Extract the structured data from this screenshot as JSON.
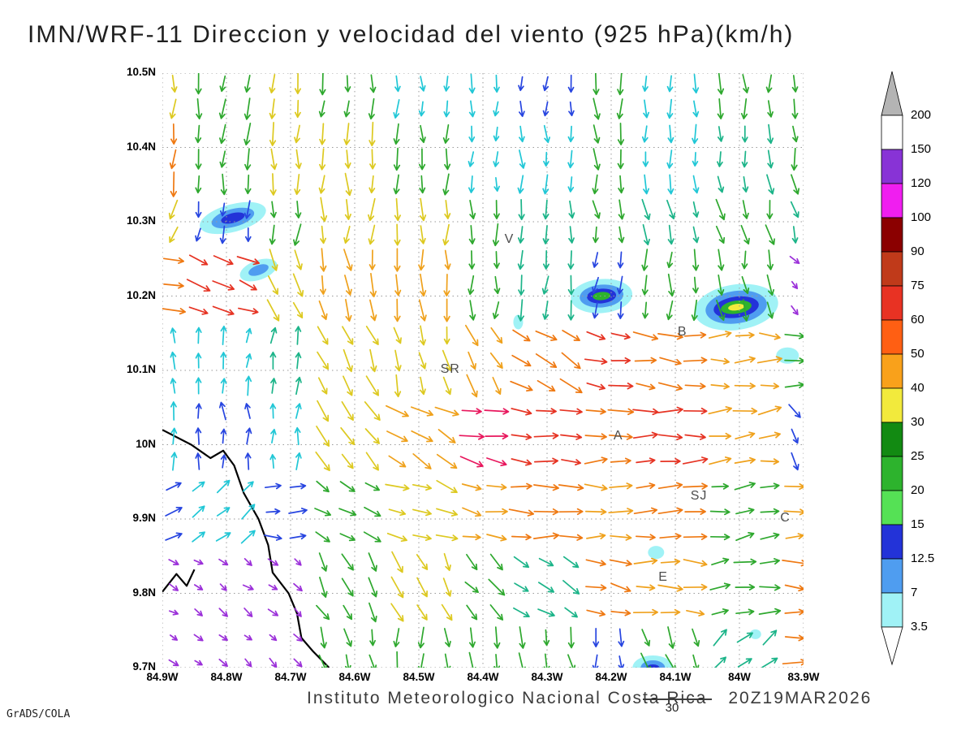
{
  "title": "IMN/WRF-11 Direccion y velocidad del viento (925 hPa)(km/h)",
  "credit": "GrADS/COLA",
  "footer": {
    "text": "Instituto Meteorologico Nacional Costa Rica",
    "timestamp": "20Z19MAR2026"
  },
  "reference_vector": {
    "label": "30"
  },
  "chart_data": {
    "type": "vector_field",
    "model": "IMN/WRF-11",
    "variable": "Direccion y velocidad del viento",
    "pressure_level": "925 hPa",
    "units": "km/h",
    "x_axis": {
      "ticks": [
        "84.9W",
        "84.8W",
        "84.7W",
        "84.6W",
        "84.5W",
        "84.4W",
        "84.3W",
        "84.2W",
        "84.1W",
        "84W",
        "83.9W"
      ],
      "lon_range": [
        84.9,
        83.9
      ]
    },
    "y_axis": {
      "ticks": [
        "10.5N",
        "10.4N",
        "10.3N",
        "10.2N",
        "10.1N",
        "10N",
        "9.9N",
        "9.8N",
        "9.7N"
      ],
      "lat_range": [
        10.5,
        9.7
      ]
    },
    "grid": true,
    "colorbar": {
      "position": "right",
      "top_label": "200",
      "above_color": "#b4b4b4",
      "below_color": "#ffffff",
      "segments": [
        {
          "hex": "#ffffff",
          "label": "150"
        },
        {
          "hex": "#8833d6",
          "label": "120"
        },
        {
          "hex": "#f01ef0",
          "label": "100"
        },
        {
          "hex": "#8b0000",
          "label": "90"
        },
        {
          "hex": "#c03a1a",
          "label": "75"
        },
        {
          "hex": "#e83223",
          "label": "60"
        },
        {
          "hex": "#ff5f13",
          "label": "50"
        },
        {
          "hex": "#f9a11b",
          "label": "40"
        },
        {
          "hex": "#f2ea3c",
          "label": "30"
        },
        {
          "hex": "#128a12",
          "label": "25"
        },
        {
          "hex": "#2db32d",
          "label": "20"
        },
        {
          "hex": "#55e155",
          "label": "15"
        },
        {
          "hex": "#2333d8",
          "label": "12.5"
        },
        {
          "hex": "#4f9df0",
          "label": "7"
        },
        {
          "hex": "#a0f2f6",
          "label": "3.5"
        }
      ]
    },
    "stations": [
      {
        "label": "V",
        "lon": 84.36,
        "lat": 10.275
      },
      {
        "label": "B",
        "lon": 84.09,
        "lat": 10.15
      },
      {
        "label": "SR",
        "lon": 84.46,
        "lat": 10.1
      },
      {
        "label": "A",
        "lon": 84.19,
        "lat": 10.01
      },
      {
        "label": "SJ",
        "lon": 84.07,
        "lat": 9.93
      },
      {
        "label": "E",
        "lon": 84.12,
        "lat": 9.82
      },
      {
        "label": "C",
        "lon": 83.93,
        "lat": 9.9
      }
    ],
    "shaded_maxima": [
      {
        "lon": 84.79,
        "lat": 10.305,
        "rot": -15,
        "layers": [
          [
            "#a0f2f6",
            42,
            17
          ],
          [
            "#4f9df0",
            27,
            11
          ],
          [
            "#2333d8",
            15,
            6
          ]
        ]
      },
      {
        "lon": 84.75,
        "lat": 10.235,
        "rot": -20,
        "layers": [
          [
            "#a0f2f6",
            24,
            12
          ],
          [
            "#4f9df0",
            13,
            6
          ]
        ]
      },
      {
        "lon": 84.215,
        "lat": 10.2,
        "rot": -5,
        "layers": [
          [
            "#a0f2f6",
            38,
            21
          ],
          [
            "#4f9df0",
            27,
            14
          ],
          [
            "#2333d8",
            18,
            9
          ],
          [
            "#2db32d",
            11,
            5
          ]
        ]
      },
      {
        "lon": 84.005,
        "lat": 10.185,
        "rot": -8,
        "layers": [
          [
            "#a0f2f6",
            52,
            28
          ],
          [
            "#4f9df0",
            38,
            20
          ],
          [
            "#2333d8",
            28,
            13
          ],
          [
            "#2db32d",
            19,
            8
          ],
          [
            "#f2ea3c",
            10,
            4
          ]
        ]
      },
      {
        "lon": 84.345,
        "lat": 10.165,
        "rot": 0,
        "layers": [
          [
            "#a0f2f6",
            6,
            9
          ]
        ]
      },
      {
        "lon": 83.925,
        "lat": 10.12,
        "rot": 0,
        "layers": [
          [
            "#a0f2f6",
            14,
            10
          ]
        ]
      },
      {
        "lon": 84.13,
        "lat": 9.855,
        "rot": 0,
        "layers": [
          [
            "#a0f2f6",
            10,
            8
          ]
        ]
      },
      {
        "lon": 83.975,
        "lat": 9.745,
        "rot": 0,
        "layers": [
          [
            "#a0f2f6",
            7,
            6
          ]
        ]
      },
      {
        "lon": 84.135,
        "lat": 9.7,
        "rot": 0,
        "layers": [
          [
            "#a0f2f6",
            25,
            15
          ],
          [
            "#4f9df0",
            15,
            9
          ],
          [
            "#2333d8",
            8,
            4
          ]
        ]
      }
    ],
    "coastline": [
      [
        [
          84.9,
          10.02
        ],
        [
          84.855,
          10.0
        ],
        [
          84.825,
          9.982
        ],
        [
          84.805,
          9.992
        ],
        [
          84.788,
          9.972
        ],
        [
          84.773,
          9.935
        ],
        [
          84.75,
          9.9
        ],
        [
          84.735,
          9.865
        ],
        [
          84.728,
          9.828
        ],
        [
          84.703,
          9.8
        ],
        [
          84.69,
          9.773
        ],
        [
          84.683,
          9.74
        ],
        [
          84.665,
          9.722
        ],
        [
          84.64,
          9.7
        ]
      ],
      [
        [
          84.9,
          9.802
        ],
        [
          84.878,
          9.826
        ],
        [
          84.862,
          9.81
        ],
        [
          84.85,
          9.832
        ]
      ]
    ],
    "palette": {
      "vio": {
        "hex": "#9b30d9",
        "len": 12
      },
      "blu": {
        "hex": "#2745e0",
        "len": 19
      },
      "cyn": {
        "hex": "#21c7d6",
        "len": 20
      },
      "tea": {
        "hex": "#1cb489",
        "len": 22
      },
      "grn": {
        "hex": "#2ea82e",
        "len": 23
      },
      "yel": {
        "hex": "#ddc920",
        "len": 25
      },
      "amb": {
        "hex": "#efa11c",
        "len": 26
      },
      "org": {
        "hex": "#ef7912",
        "len": 27
      },
      "red": {
        "hex": "#e63323",
        "len": 27
      },
      "crm": {
        "hex": "#e8175d",
        "len": 28
      }
    },
    "vector_grid": {
      "lons": [
        84.9,
        84.8,
        84.7,
        84.6,
        84.5,
        84.4,
        84.3,
        84.2,
        84.1,
        84.0,
        83.9
      ],
      "lats": [
        10.5,
        10.4,
        10.3,
        10.2,
        10.1,
        10.0,
        9.9,
        9.8,
        9.7
      ],
      "cells": [
        [
          [
            95,
            "yel"
          ],
          [
            95,
            "grn"
          ],
          [
            90,
            "yel"
          ],
          [
            90,
            "grn"
          ],
          [
            90,
            "cyn"
          ],
          [
            90,
            "cyn"
          ],
          [
            92,
            "blu"
          ],
          [
            88,
            "grn"
          ],
          [
            90,
            "cyn"
          ],
          [
            88,
            "grn"
          ],
          [
            85,
            "grn"
          ]
        ],
        [
          [
            100,
            "org"
          ],
          [
            95,
            "grn"
          ],
          [
            92,
            "yel"
          ],
          [
            90,
            "yel"
          ],
          [
            90,
            "grn"
          ],
          [
            90,
            "cyn"
          ],
          [
            90,
            "cyn"
          ],
          [
            88,
            "grn"
          ],
          [
            86,
            "cyn"
          ],
          [
            85,
            "tea"
          ],
          [
            82,
            "grn"
          ]
        ],
        [
          [
            108,
            "yel"
          ],
          [
            98,
            "blu"
          ],
          [
            95,
            "grn"
          ],
          [
            92,
            "yel"
          ],
          [
            90,
            "yel"
          ],
          [
            88,
            "grn"
          ],
          [
            86,
            "tea"
          ],
          [
            82,
            "grn"
          ],
          [
            80,
            "tea"
          ],
          [
            78,
            "grn"
          ],
          [
            75,
            "tea"
          ]
        ],
        [
          [
            15,
            "org"
          ],
          [
            20,
            "red"
          ],
          [
            60,
            "yel"
          ],
          [
            80,
            "amb"
          ],
          [
            88,
            "amb"
          ],
          [
            92,
            "grn"
          ],
          [
            98,
            "tea"
          ],
          [
            100,
            "blu"
          ],
          [
            92,
            "grn"
          ],
          [
            82,
            "grn"
          ],
          [
            45,
            "vio"
          ]
        ],
        [
          [
            270,
            "cyn"
          ],
          [
            272,
            "cyn"
          ],
          [
            275,
            "tea"
          ],
          [
            70,
            "yel"
          ],
          [
            78,
            "yel"
          ],
          [
            60,
            "amb"
          ],
          [
            30,
            "org"
          ],
          [
            10,
            "red"
          ],
          [
            5,
            "org"
          ],
          [
            0,
            "amb"
          ],
          [
            0,
            "grn"
          ]
        ],
        [
          [
            270,
            "cyn"
          ],
          [
            268,
            "blu"
          ],
          [
            272,
            "cyn"
          ],
          [
            50,
            "yel"
          ],
          [
            30,
            "amb"
          ],
          [
            12,
            "crm"
          ],
          [
            5,
            "red"
          ],
          [
            0,
            "org"
          ],
          [
            358,
            "red"
          ],
          [
            352,
            "amb"
          ],
          [
            60,
            "blu"
          ]
        ],
        [
          [
            330,
            "blu"
          ],
          [
            320,
            "cyn"
          ],
          [
            0,
            "blu"
          ],
          [
            30,
            "grn"
          ],
          [
            20,
            "yel"
          ],
          [
            10,
            "amb"
          ],
          [
            5,
            "org"
          ],
          [
            0,
            "amb"
          ],
          [
            355,
            "org"
          ],
          [
            350,
            "grn"
          ],
          [
            0,
            "amb"
          ]
        ],
        [
          [
            30,
            "vio"
          ],
          [
            35,
            "vio"
          ],
          [
            40,
            "vio"
          ],
          [
            60,
            "grn"
          ],
          [
            65,
            "yel"
          ],
          [
            45,
            "grn"
          ],
          [
            30,
            "tea"
          ],
          [
            10,
            "org"
          ],
          [
            0,
            "amb"
          ],
          [
            352,
            "grn"
          ],
          [
            0,
            "org"
          ]
        ],
        [
          [
            35,
            "vio"
          ],
          [
            40,
            "vio"
          ],
          [
            45,
            "vio"
          ],
          [
            75,
            "grn"
          ],
          [
            88,
            "grn"
          ],
          [
            85,
            "grn"
          ],
          [
            80,
            "grn"
          ],
          [
            90,
            "blu"
          ],
          [
            70,
            "grn"
          ],
          [
            320,
            "tea"
          ],
          [
            0,
            "org"
          ]
        ]
      ]
    }
  }
}
